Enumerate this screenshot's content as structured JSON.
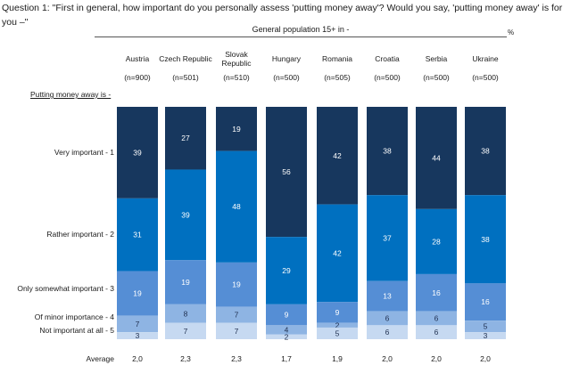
{
  "question": "Question 1:  \"First in general, how important do you personally assess 'putting money away'? Would you say, 'putting money away' is for you –\"",
  "subtitle": "General population 15+ in -",
  "unit": "%",
  "row_header": "Putting money away is -",
  "average_label": "Average",
  "colors": [
    "#17375e",
    "#0070c0",
    "#558ed5",
    "#8eb4e3",
    "#c6d9f1"
  ],
  "label_colors": [
    "#ffffff",
    "#ffffff",
    "#ffffff",
    "#1f2f4f",
    "#1f2f4f"
  ],
  "countries": [
    {
      "name": "Austria",
      "n": "(n=900)",
      "average": "2,0"
    },
    {
      "name": "Czech Republic",
      "n": "(n=501)",
      "average": "2,3"
    },
    {
      "name": "Slovak Republic",
      "n": "(n=510)",
      "average": "2,3"
    },
    {
      "name": "Hungary",
      "n": "(n=500)",
      "average": "1,7"
    },
    {
      "name": "Romania",
      "n": "(n=505)",
      "average": "1,9"
    },
    {
      "name": "Croatia",
      "n": "(n=500)",
      "average": "2,0"
    },
    {
      "name": "Serbia",
      "n": "(n=500)",
      "average": "2,0"
    },
    {
      "name": "Ukraine",
      "n": "(n=500)",
      "average": "2,0"
    }
  ],
  "chart_data": {
    "type": "bar",
    "stacked": true,
    "percent": true,
    "title": "General population 15+ in -",
    "xlabel": "",
    "ylabel": "%",
    "ylim": [
      0,
      100
    ],
    "categories": [
      "Austria",
      "Czech Republic",
      "Slovak Republic",
      "Hungary",
      "Romania",
      "Croatia",
      "Serbia",
      "Ukraine"
    ],
    "series": [
      {
        "name": "Very important - 1",
        "values": [
          39,
          27,
          19,
          56,
          42,
          38,
          44,
          38
        ]
      },
      {
        "name": "Rather important - 2",
        "values": [
          31,
          39,
          48,
          29,
          42,
          37,
          28,
          38
        ]
      },
      {
        "name": "Only somewhat important - 3",
        "values": [
          19,
          19,
          19,
          9,
          9,
          13,
          16,
          16
        ]
      },
      {
        "name": "Of minor importance - 4",
        "values": [
          7,
          8,
          7,
          4,
          2,
          6,
          6,
          5
        ]
      },
      {
        "name": "Not important at all - 5",
        "values": [
          3,
          7,
          7,
          2,
          5,
          6,
          6,
          3
        ]
      }
    ],
    "averages": [
      "2,0",
      "2,3",
      "2,3",
      "1,7",
      "1,9",
      "2,0",
      "2,0",
      "2,0"
    ]
  }
}
